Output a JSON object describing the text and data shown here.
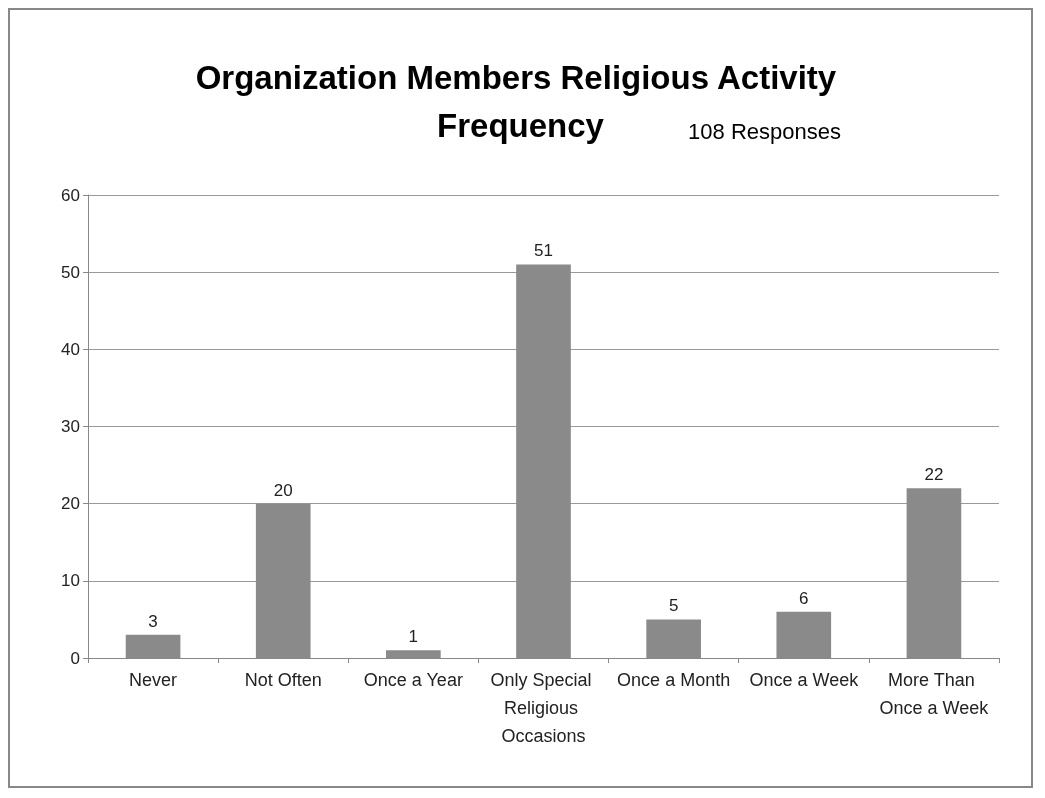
{
  "chart_data": {
    "type": "bar",
    "title": "Organization Members Religious Activity Frequency",
    "annotations": [
      "108 Responses"
    ],
    "categories": [
      "Never",
      "Not Often",
      "Once a Year",
      "Only Special Religious Occasions",
      "Once a Month",
      "Once a Week",
      "More Than Once a Week"
    ],
    "values": [
      3,
      20,
      1,
      51,
      5,
      6,
      22
    ],
    "color": "#8a8a8a",
    "data_labels": true,
    "ylim": [
      0,
      60
    ],
    "yticks": [
      0,
      10,
      20,
      30,
      40,
      50,
      60
    ],
    "grid": "y"
  }
}
